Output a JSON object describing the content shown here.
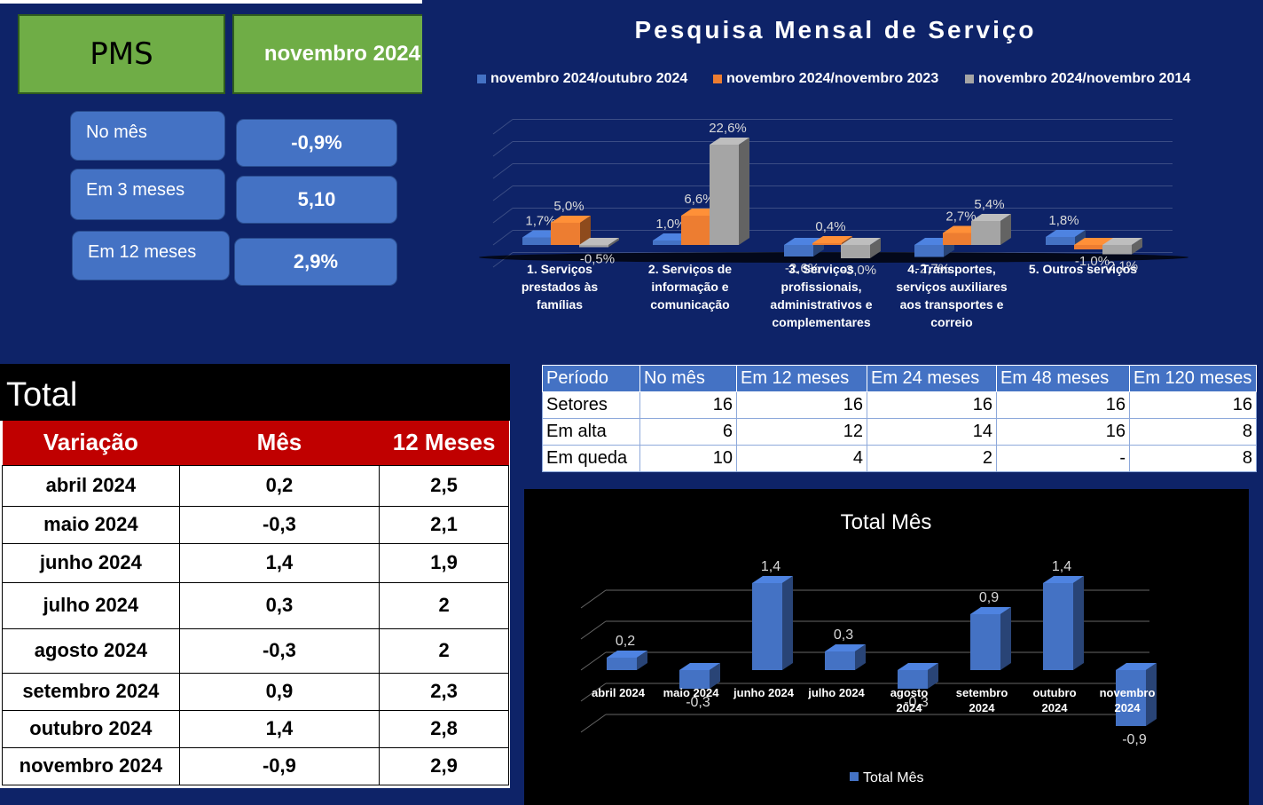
{
  "pms_label": "PMS",
  "reference_month": "novembro 2024",
  "kpis": [
    {
      "label": "No mês",
      "value": "-0,9%"
    },
    {
      "label": "Em 3 meses",
      "value": "5,10"
    },
    {
      "label": "Em 12 meses",
      "value": "2,9%"
    }
  ],
  "colors": {
    "background": "#0e2368",
    "green": "#6fad46",
    "blue": "#4472c4",
    "orange": "#ed7d31",
    "gray": "#a5a5a5",
    "red": "#c00000"
  },
  "chart_data": [
    {
      "type": "bar",
      "title": "Pesquisa Mensal de Serviço",
      "categories": [
        [
          "1. Serviços",
          "prestados às",
          "famílias"
        ],
        [
          "2. Serviços de",
          "informação e",
          "comunicação"
        ],
        [
          "3. Serviços",
          "profissionais,",
          "administrativos e",
          "complementares"
        ],
        [
          "4. Transportes,",
          "serviços auxiliares",
          "aos transportes e",
          "correio"
        ],
        [
          "5. Outros serviços"
        ]
      ],
      "series": [
        {
          "name": "novembro 2024/outubro 2024",
          "values": [
            1.7,
            1.0,
            -2.6,
            -2.7,
            1.8
          ],
          "labels": [
            "1,7%",
            "1,0%",
            "-2,6%",
            "-2,7%",
            "1,8%"
          ]
        },
        {
          "name": "novembro 2024/novembro 2023",
          "values": [
            5.0,
            6.6,
            0.4,
            2.7,
            -1.0
          ],
          "labels": [
            "5,0%",
            "6,6%",
            "0,4%",
            "2,7%",
            "-1,0%"
          ]
        },
        {
          "name": "novembro 2024/novembro 2014",
          "values": [
            -0.5,
            22.6,
            -3.0,
            5.4,
            -2.1
          ],
          "labels": [
            "-0,5%",
            "22,6%",
            "-3,0%",
            "5,4%",
            "-2,1%"
          ]
        }
      ],
      "legend": "top",
      "grid": true
    },
    {
      "type": "bar",
      "title": "Total Mês",
      "categories": [
        [
          "abril 2024"
        ],
        [
          "maio 2024"
        ],
        [
          "junho 2024"
        ],
        [
          "julho 2024"
        ],
        [
          "agosto",
          "2024"
        ],
        [
          "setembro",
          "2024"
        ],
        [
          "outubro",
          "2024"
        ],
        [
          "novembro",
          "2024"
        ]
      ],
      "series": [
        {
          "name": "Total Mês",
          "values": [
            0.2,
            -0.3,
            1.4,
            0.3,
            -0.3,
            0.9,
            1.4,
            -0.9
          ],
          "labels": [
            "0,2",
            "-0,3",
            "1,4",
            "0,3",
            "-0,3",
            "0,9",
            "1,4",
            "-0,9"
          ]
        }
      ],
      "legend": "bottom",
      "grid": true
    }
  ],
  "total_table": {
    "title": "Total",
    "headers": [
      "Variação",
      "Mês",
      "12 Meses"
    ],
    "rows": [
      [
        "abril 2024",
        "0,2",
        "2,5"
      ],
      [
        "maio 2024",
        "-0,3",
        "2,1"
      ],
      [
        "junho 2024",
        "1,4",
        "1,9"
      ],
      [
        "julho 2024",
        "0,3",
        "2"
      ],
      [
        "agosto 2024",
        "-0,3",
        "2"
      ],
      [
        "setembro 2024",
        "0,9",
        "2,3"
      ],
      [
        "outubro 2024",
        "1,4",
        "2,8"
      ],
      [
        "novembro 2024",
        "-0,9",
        "2,9"
      ]
    ]
  },
  "sectors_table": {
    "headers": [
      "Período",
      "No mês",
      "Em 12 meses",
      "Em 24 meses",
      "Em 48 meses",
      "Em 120 meses"
    ],
    "rows": [
      [
        "Setores",
        "16",
        "16",
        "16",
        "16",
        "16"
      ],
      [
        "Em alta",
        "6",
        "12",
        "14",
        "16",
        "8"
      ],
      [
        "Em queda",
        "10",
        "4",
        "2",
        "-",
        "8"
      ]
    ]
  }
}
